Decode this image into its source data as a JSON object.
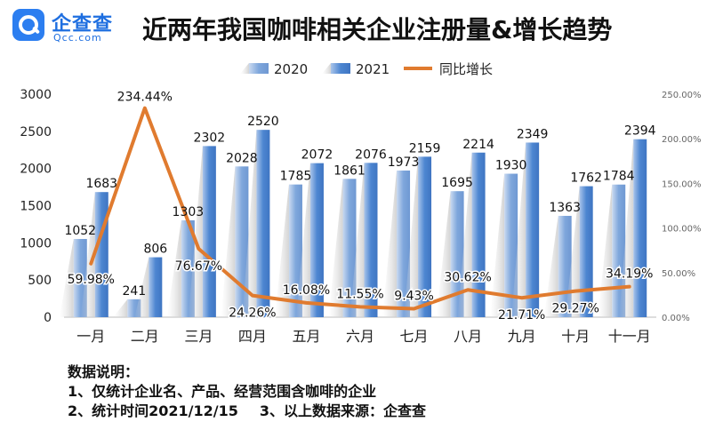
{
  "logo": {
    "name": "企查查",
    "domain": "Qcc.com"
  },
  "title": "近两年我国咖啡相关企业注册量&增长趋势",
  "colors": {
    "bar2020": "#7fa7dc",
    "bar2021": "#4d86d1",
    "growth": "#e07b2f",
    "axis": "#333333"
  },
  "chart_data": {
    "type": "bar",
    "categories": [
      "一月",
      "二月",
      "三月",
      "四月",
      "五月",
      "六月",
      "七月",
      "八月",
      "九月",
      "十月",
      "十一月"
    ],
    "series": [
      {
        "name": "2020",
        "values": [
          1052,
          241,
          1303,
          2028,
          1785,
          1861,
          1973,
          1695,
          1930,
          1363,
          1784
        ]
      },
      {
        "name": "2021",
        "values": [
          1683,
          806,
          2302,
          2520,
          2072,
          2076,
          2159,
          2214,
          2349,
          1762,
          2394
        ]
      },
      {
        "name": "同比增长",
        "type": "line",
        "axis": "right",
        "values": [
          59.98,
          234.44,
          76.67,
          24.26,
          16.08,
          11.55,
          9.43,
          30.62,
          21.71,
          29.27,
          34.19
        ],
        "labels": [
          "59.98%",
          "234.44%",
          "76.67%",
          "24.26%",
          "16.08%",
          "11.55%",
          "9.43%",
          "30.62%",
          "21.71%",
          "29.27%",
          "34.19%"
        ]
      }
    ],
    "y_left": {
      "ylim": [
        0,
        3000
      ],
      "ticks": [
        "0",
        "500",
        "1000",
        "1500",
        "2000",
        "2500",
        "3000"
      ]
    },
    "y_right": {
      "ylim": [
        0,
        250
      ],
      "ticks": [
        "0.00%",
        "50.00%",
        "100.00%",
        "150.00%",
        "200.00%",
        "250.00%"
      ]
    },
    "legend": {
      "position": "top",
      "items": [
        "2020",
        "2021",
        "同比增长"
      ]
    },
    "grid": false
  },
  "notes": {
    "heading": "数据说明：",
    "line1": "1、仅统计企业名、产品、经营范围含咖啡的企业",
    "line2a": "2、统计时间2021/12/15",
    "line2b": "3、以上数据来源：企查查"
  }
}
